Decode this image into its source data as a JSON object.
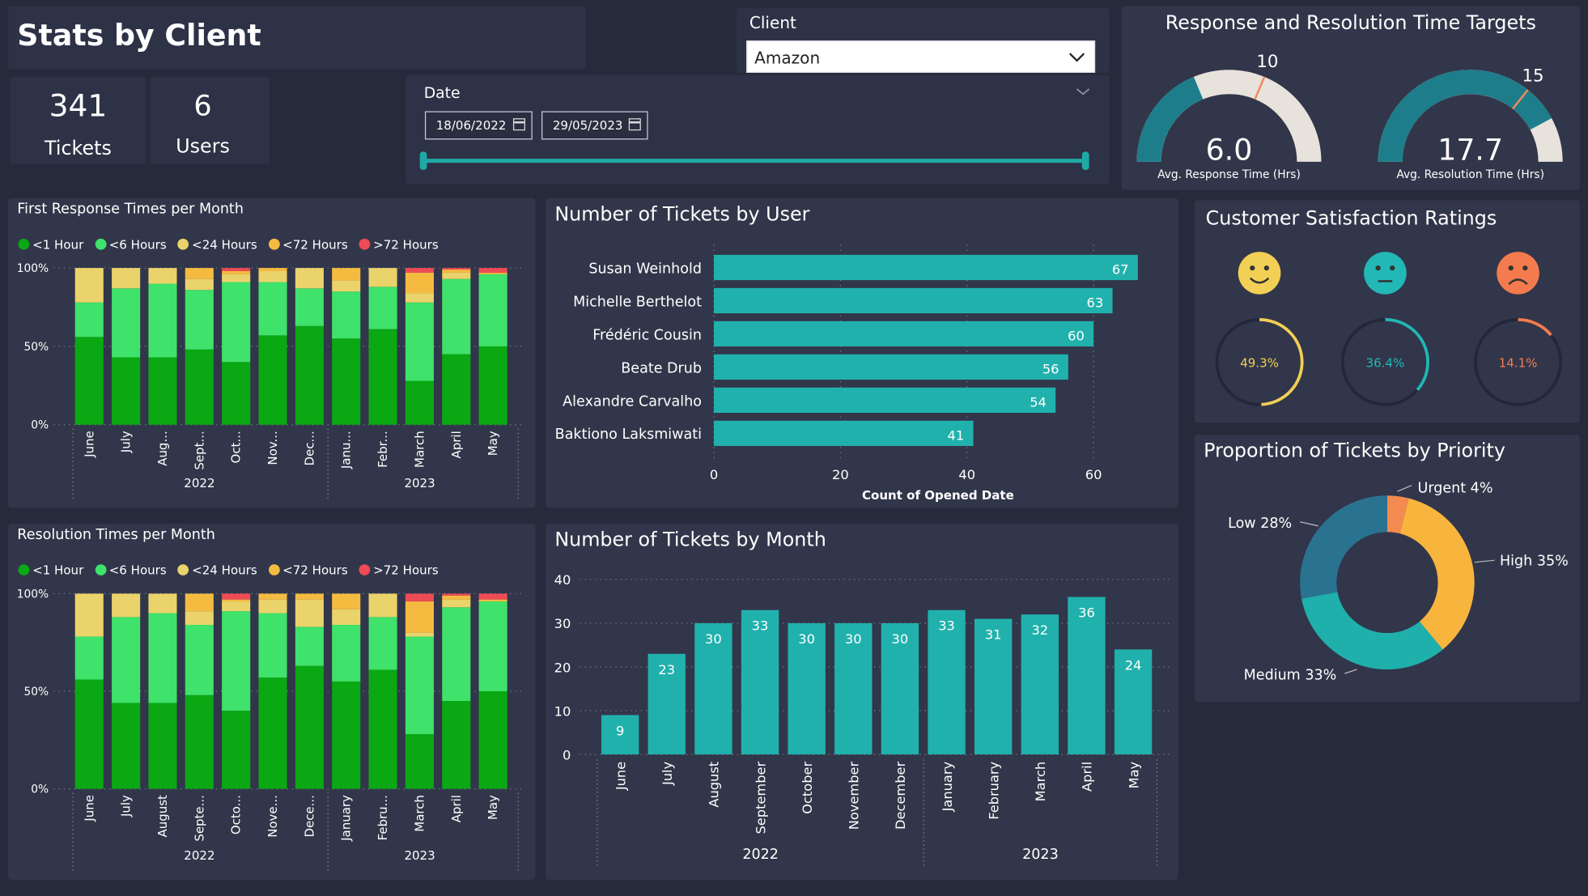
{
  "header": {
    "title": "Stats by Client",
    "kpis": [
      {
        "value": "341",
        "label": "Tickets"
      },
      {
        "value": "6",
        "label": "Users"
      }
    ]
  },
  "filters": {
    "client_label": "Client",
    "client_value": "Amazon",
    "date_label": "Date",
    "date_from": "18/06/2022",
    "date_to": "29/05/2023"
  },
  "targets": {
    "title": "Response and Resolution Time Targets",
    "gauges": [
      {
        "target": 10,
        "value": 6.0,
        "value_text": "6.0",
        "label": "Avg. Response Time (Hrs)",
        "max": 16
      },
      {
        "target": 15,
        "value": 17.7,
        "value_text": "17.7",
        "label": "Avg. Resolution Time (Hrs)",
        "max": 21
      }
    ]
  },
  "legend_labels": [
    "<1 Hour",
    "<6 Hours",
    "<24 Hours",
    "<72 Hours",
    ">72 Hours"
  ],
  "colors": {
    "lt1h": "#0aa813",
    "lt6h": "#3fe26a",
    "lt24h": "#ead36b",
    "lt72h": "#f5bb41",
    "gt72h": "#ee4b55",
    "teal": "#21b1ad",
    "orange": "#f36c3f",
    "gauge_bg": "#e8e2dc",
    "gauge_fill": "#1e7d8a"
  },
  "satisfaction": {
    "title": "Customer Satisfaction Ratings",
    "ratings": [
      {
        "face": "happy-face-icon",
        "percent": 49.3,
        "text": "49.3%",
        "color": "#f2cf55"
      },
      {
        "face": "neutral-face-icon",
        "percent": 36.4,
        "text": "36.4%",
        "color": "#21b8b5"
      },
      {
        "face": "sad-face-icon",
        "percent": 14.1,
        "text": "14.1%",
        "color": "#f47b4e"
      }
    ]
  },
  "chart_data": [
    {
      "id": "first-response",
      "type": "bar",
      "stacked": true,
      "title": "First Response Times per Month",
      "categories": [
        "June",
        "July",
        "Aug...",
        "Sept...",
        "Oct...",
        "Nov...",
        "Dec...",
        "Janu...",
        "Febr...",
        "March",
        "April",
        "May"
      ],
      "year_groups": [
        {
          "label": "2022",
          "count": 7
        },
        {
          "label": "2023",
          "count": 5
        }
      ],
      "yticks": [
        "0%",
        "50%",
        "100%"
      ],
      "series": [
        {
          "name": "<1 Hour",
          "values": [
            56,
            43,
            43,
            48,
            40,
            57,
            63,
            55,
            61,
            28,
            45,
            50
          ]
        },
        {
          "name": "<6 Hours",
          "values": [
            22,
            44,
            47,
            38,
            51,
            34,
            24,
            30,
            27,
            50,
            48,
            46
          ]
        },
        {
          "name": "<24 Hours",
          "values": [
            22,
            13,
            10,
            7,
            5,
            7,
            13,
            7,
            12,
            6,
            4,
            0
          ]
        },
        {
          "name": "<72 Hours",
          "values": [
            0,
            0,
            0,
            7,
            2,
            2,
            0,
            8,
            0,
            13,
            2,
            1
          ]
        },
        {
          "name": ">72 Hours",
          "values": [
            0,
            0,
            0,
            0,
            2,
            0,
            0,
            0,
            0,
            3,
            1,
            3
          ]
        }
      ]
    },
    {
      "id": "resolution",
      "type": "bar",
      "stacked": true,
      "title": "Resolution Times per Month",
      "categories": [
        "June",
        "July",
        "August",
        "Septe...",
        "Octo...",
        "Nove...",
        "Dece...",
        "January",
        "Febru...",
        "March",
        "April",
        "May"
      ],
      "year_groups": [
        {
          "label": "2022",
          "count": 7
        },
        {
          "label": "2023",
          "count": 5
        }
      ],
      "yticks": [
        "0%",
        "50%",
        "100%"
      ],
      "series": [
        {
          "name": "<1 Hour",
          "values": [
            56,
            44,
            44,
            48,
            40,
            57,
            63,
            55,
            61,
            28,
            45,
            50
          ]
        },
        {
          "name": "<6 Hours",
          "values": [
            22,
            44,
            46,
            36,
            51,
            33,
            20,
            29,
            27,
            50,
            48,
            46
          ]
        },
        {
          "name": "<24 Hours",
          "values": [
            22,
            12,
            10,
            7,
            5,
            7,
            14,
            8,
            12,
            2,
            4,
            0
          ]
        },
        {
          "name": "<72 Hours",
          "values": [
            0,
            0,
            0,
            9,
            1,
            3,
            3,
            8,
            0,
            16,
            2,
            1
          ]
        },
        {
          "name": ">72 Hours",
          "values": [
            0,
            0,
            0,
            0,
            3,
            0,
            0,
            0,
            0,
            4,
            1,
            3
          ]
        }
      ]
    },
    {
      "id": "tickets-by-user",
      "type": "bar",
      "orientation": "horizontal",
      "title": "Number of Tickets by User",
      "categories": [
        "Susan Weinhold",
        "Michelle Berthelot",
        "Frédéric Cousin",
        "Beate Drub",
        "Alexandre Carvalho",
        "Baktiono Laksmiwati"
      ],
      "values": [
        67,
        63,
        60,
        56,
        54,
        41
      ],
      "xlabel": "Count of Opened Date",
      "xticks": [
        0,
        20,
        40,
        60
      ],
      "xlim": [
        0,
        67
      ]
    },
    {
      "id": "tickets-by-month",
      "type": "bar",
      "title": "Number of Tickets by Month",
      "categories": [
        "June",
        "July",
        "August",
        "September",
        "October",
        "November",
        "December",
        "January",
        "February",
        "March",
        "April",
        "May"
      ],
      "values": [
        9,
        23,
        30,
        33,
        30,
        30,
        30,
        33,
        31,
        32,
        36,
        24
      ],
      "year_groups": [
        {
          "label": "2022",
          "count": 7
        },
        {
          "label": "2023",
          "count": 5
        }
      ],
      "yticks": [
        0,
        10,
        20,
        30,
        40
      ],
      "ylim": [
        0,
        40
      ]
    },
    {
      "id": "priority",
      "type": "pie",
      "donut": true,
      "title": "Proportion of Tickets by Priority",
      "slices": [
        {
          "name": "Urgent",
          "value": 4,
          "label": "Urgent 4%",
          "color": "#f38a4f"
        },
        {
          "name": "High",
          "value": 35,
          "label": "High 35%",
          "color": "#f7b53e"
        },
        {
          "name": "Medium",
          "value": 33,
          "label": "Medium 33%",
          "color": "#1fb0ac"
        },
        {
          "name": "Low",
          "value": 28,
          "label": "Low 28%",
          "color": "#2a7390"
        }
      ]
    }
  ]
}
